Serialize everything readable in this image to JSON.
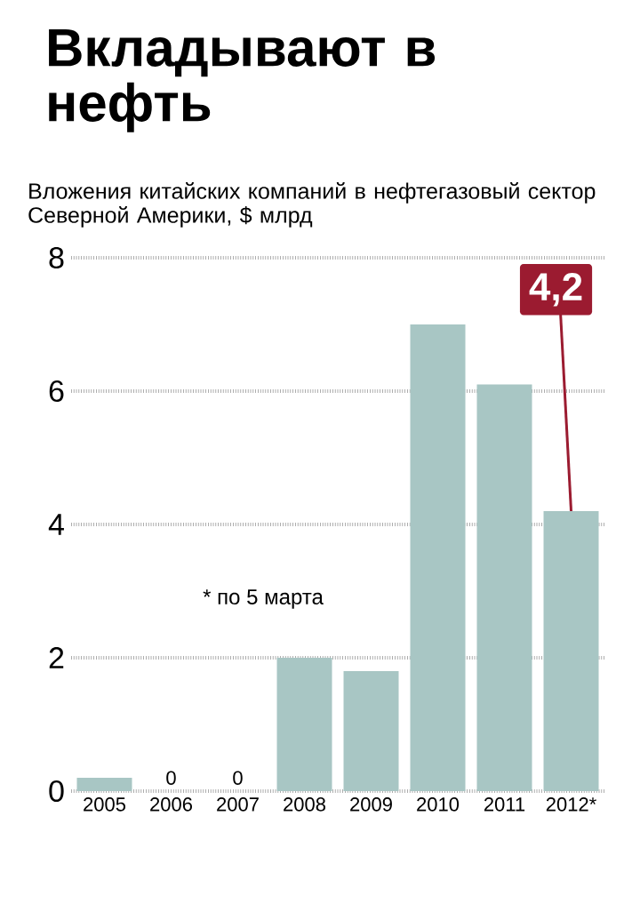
{
  "chart_data": {
    "type": "bar",
    "title": "Вкладывают в нефть",
    "subtitle": "Вложения китайских компаний в нефтегазовый сектор Северной Америки, $ млрд",
    "categories": [
      "2005",
      "2006",
      "2007",
      "2008",
      "2009",
      "2010",
      "2011",
      "2012*"
    ],
    "values": [
      0.2,
      0,
      0,
      2.0,
      1.8,
      7.0,
      6.1,
      4.2
    ],
    "value_labels": [
      null,
      "0",
      "0",
      null,
      null,
      null,
      null,
      "4,2"
    ],
    "color": "#a8c6c4",
    "ylim": [
      0,
      8
    ],
    "yticks": [
      0,
      2,
      4,
      6,
      8
    ],
    "grid": "y",
    "annotations": [
      "* по 5 марта"
    ]
  }
}
